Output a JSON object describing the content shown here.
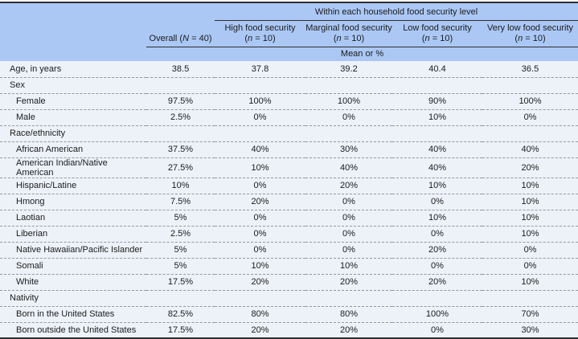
{
  "colors": {
    "header_bg": "#abc8f5",
    "body_bg": "#edf2f9",
    "rule_dark": "#2e2e2e",
    "dash_color": "#9199a1",
    "text_color": "#1b1b1b"
  },
  "header": {
    "spanner": "Within each household food security level",
    "overall": {
      "name": "Overall",
      "open": " (",
      "var": "N",
      "rest": " = 40)"
    },
    "groups": [
      {
        "title": "High food security",
        "open": "(",
        "var": "n",
        "rest": " = 10)"
      },
      {
        "title": "Marginal food security",
        "open": "(",
        "var": "n",
        "rest": " = 10)"
      },
      {
        "title": "Low food security",
        "open": "(",
        "var": "n",
        "rest": " = 10)"
      },
      {
        "title": "Very low food security",
        "open": "(",
        "var": "n",
        "rest": " = 10)"
      }
    ],
    "measure_label": "Mean or %"
  },
  "rows": [
    {
      "type": "data",
      "indent": 1,
      "label": "Age, in years",
      "values": [
        "38.5",
        "37.8",
        "39.2",
        "40.4",
        "36.5"
      ]
    },
    {
      "type": "section",
      "label": "Sex"
    },
    {
      "type": "data",
      "indent": 2,
      "label": "Female",
      "values": [
        "97.5%",
        "100%",
        "100%",
        "90%",
        "100%"
      ]
    },
    {
      "type": "data",
      "indent": 2,
      "label": "Male",
      "values": [
        "2.5%",
        "0%",
        "0%",
        "10%",
        "0%"
      ]
    },
    {
      "type": "section",
      "label": "Race/ethnicity"
    },
    {
      "type": "data",
      "indent": 2,
      "label": "African American",
      "values": [
        "37.5%",
        "40%",
        "30%",
        "40%",
        "40%"
      ]
    },
    {
      "type": "data",
      "indent": 2,
      "label": "American Indian/Native American",
      "values": [
        "27.5%",
        "10%",
        "40%",
        "40%",
        "20%"
      ]
    },
    {
      "type": "data",
      "indent": 2,
      "label": "Hispanic/Latine",
      "values": [
        "10%",
        "0%",
        "20%",
        "10%",
        "10%"
      ]
    },
    {
      "type": "data",
      "indent": 2,
      "label": "Hmong",
      "values": [
        "7.5%",
        "20%",
        "0%",
        "0%",
        "10%"
      ]
    },
    {
      "type": "data",
      "indent": 2,
      "label": "Laotian",
      "values": [
        "5%",
        "0%",
        "0%",
        "10%",
        "10%"
      ]
    },
    {
      "type": "data",
      "indent": 2,
      "label": "Liberian",
      "values": [
        "2.5%",
        "0%",
        "0%",
        "0%",
        "10%"
      ]
    },
    {
      "type": "data",
      "indent": 2,
      "label": "Native Hawaiian/Pacific Islander",
      "values": [
        "5%",
        "0%",
        "0%",
        "20%",
        "0%"
      ]
    },
    {
      "type": "data",
      "indent": 2,
      "label": "Somali",
      "values": [
        "5%",
        "10%",
        "10%",
        "0%",
        "0%"
      ]
    },
    {
      "type": "data",
      "indent": 2,
      "label": "White",
      "values": [
        "17.5%",
        "20%",
        "20%",
        "20%",
        "10%"
      ]
    },
    {
      "type": "section",
      "label": "Nativity"
    },
    {
      "type": "data",
      "indent": 2,
      "label": "Born in the United States",
      "values": [
        "82.5%",
        "80%",
        "80%",
        "100%",
        "70%"
      ]
    },
    {
      "type": "data",
      "indent": 2,
      "label": "Born outside the United States",
      "values": [
        "17.5%",
        "20%",
        "20%",
        "0%",
        "30%"
      ]
    }
  ]
}
